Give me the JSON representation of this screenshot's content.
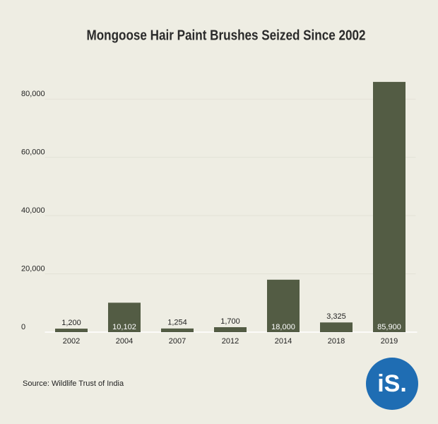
{
  "chart_data": {
    "type": "bar",
    "title": "Mongoose Hair Paint Brushes Seized Since 2002",
    "categories": [
      "2002",
      "2004",
      "2007",
      "2012",
      "2014",
      "2018",
      "2019"
    ],
    "values": [
      1200,
      10102,
      1254,
      1700,
      18000,
      3325,
      85900
    ],
    "value_labels": [
      "1,200",
      "10,102",
      "1,254",
      "1,700",
      "18,000",
      "3,325",
      "85,900"
    ],
    "color": "#535c44",
    "ylim": [
      0,
      90000
    ],
    "yticks": [
      0,
      {
        "value": 20000,
        "label": "20,000"
      },
      {
        "value": 40000,
        "label": "40,000"
      },
      {
        "value": 60000,
        "label": "60,000"
      },
      {
        "value": 80000,
        "label": "80,000"
      }
    ],
    "grid": true,
    "source": "Source: Wildlife Trust of India"
  },
  "logo": "iS."
}
